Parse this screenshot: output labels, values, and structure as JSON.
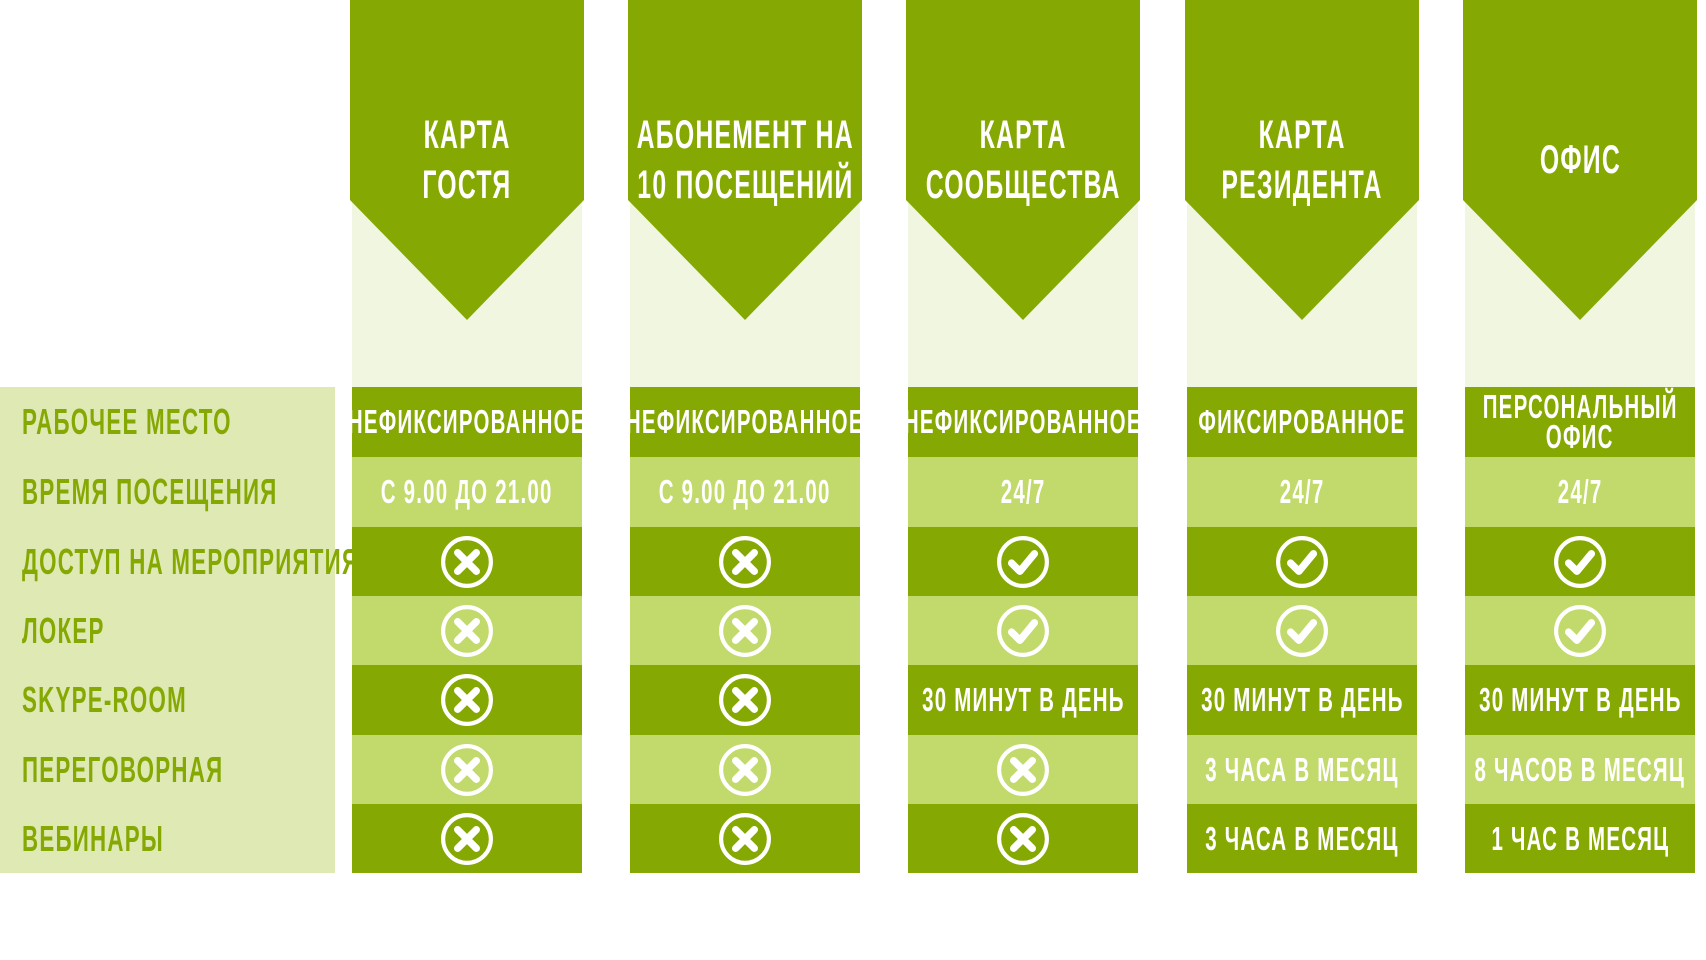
{
  "colors": {
    "dark": "#86a803",
    "light": "#c2d96b",
    "pale": "#f1f6e1",
    "label_panel": "#dfe9b4",
    "label_text": "#86a803"
  },
  "row_labels": [
    "РАБОЧЕЕ МЕСТО",
    "ВРЕМЯ ПОСЕЩЕНИЯ",
    "ДОСТУП НА МЕРОПРИЯТИЯ",
    "ЛОКЕР",
    "SKYPE-ROOM",
    "ПЕРЕГОВОРНАЯ",
    "ВЕБИНАРЫ"
  ],
  "plans": [
    {
      "title": [
        "КАРТА",
        "ГОСТЯ"
      ],
      "cells": [
        {
          "text": [
            "НЕФИКСИРОВАННОЕ"
          ]
        },
        {
          "text": [
            "С 9.00 ДО 21.00"
          ]
        },
        {
          "icon": "x-circle-icon"
        },
        {
          "icon": "x-circle-icon"
        },
        {
          "icon": "x-circle-icon"
        },
        {
          "icon": "x-circle-icon"
        },
        {
          "icon": "x-circle-icon"
        }
      ]
    },
    {
      "title": [
        "АБОНЕМЕНТ НА",
        "10 ПОСЕЩЕНИЙ"
      ],
      "cells": [
        {
          "text": [
            "НЕФИКСИРОВАННОЕ"
          ]
        },
        {
          "text": [
            "С 9.00 ДО 21.00"
          ]
        },
        {
          "icon": "x-circle-icon"
        },
        {
          "icon": "x-circle-icon"
        },
        {
          "icon": "x-circle-icon"
        },
        {
          "icon": "x-circle-icon"
        },
        {
          "icon": "x-circle-icon"
        }
      ]
    },
    {
      "title": [
        "КАРТА",
        "СООБЩЕСТВА"
      ],
      "cells": [
        {
          "text": [
            "НЕФИКСИРОВАННОЕ"
          ]
        },
        {
          "text": [
            "24/7"
          ]
        },
        {
          "icon": "check-circle-icon"
        },
        {
          "icon": "check-circle-icon"
        },
        {
          "text": [
            "30 МИНУТ В ДЕНЬ"
          ]
        },
        {
          "icon": "x-circle-icon"
        },
        {
          "icon": "x-circle-icon"
        }
      ]
    },
    {
      "title": [
        "КАРТА",
        "РЕЗИДЕНТА"
      ],
      "cells": [
        {
          "text": [
            "ФИКСИРОВАННОЕ"
          ]
        },
        {
          "text": [
            "24/7"
          ]
        },
        {
          "icon": "check-circle-icon"
        },
        {
          "icon": "check-circle-icon"
        },
        {
          "text": [
            "30 МИНУТ В ДЕНЬ"
          ]
        },
        {
          "text": [
            "3 ЧАСА В МЕСЯЦ"
          ]
        },
        {
          "text": [
            "3 ЧАСА В МЕСЯЦ"
          ]
        }
      ]
    },
    {
      "title": [
        "ОФИС"
      ],
      "cells": [
        {
          "text": [
            "ПЕРСОНАЛЬНЫЙ",
            "ОФИС"
          ]
        },
        {
          "text": [
            "24/7"
          ]
        },
        {
          "icon": "check-circle-icon"
        },
        {
          "icon": "check-circle-icon"
        },
        {
          "text": [
            "30 МИНУТ В ДЕНЬ"
          ]
        },
        {
          "text": [
            "8 ЧАСОВ В МЕСЯЦ"
          ]
        },
        {
          "text": [
            "1 ЧАС В МЕСЯЦ"
          ]
        }
      ]
    }
  ]
}
